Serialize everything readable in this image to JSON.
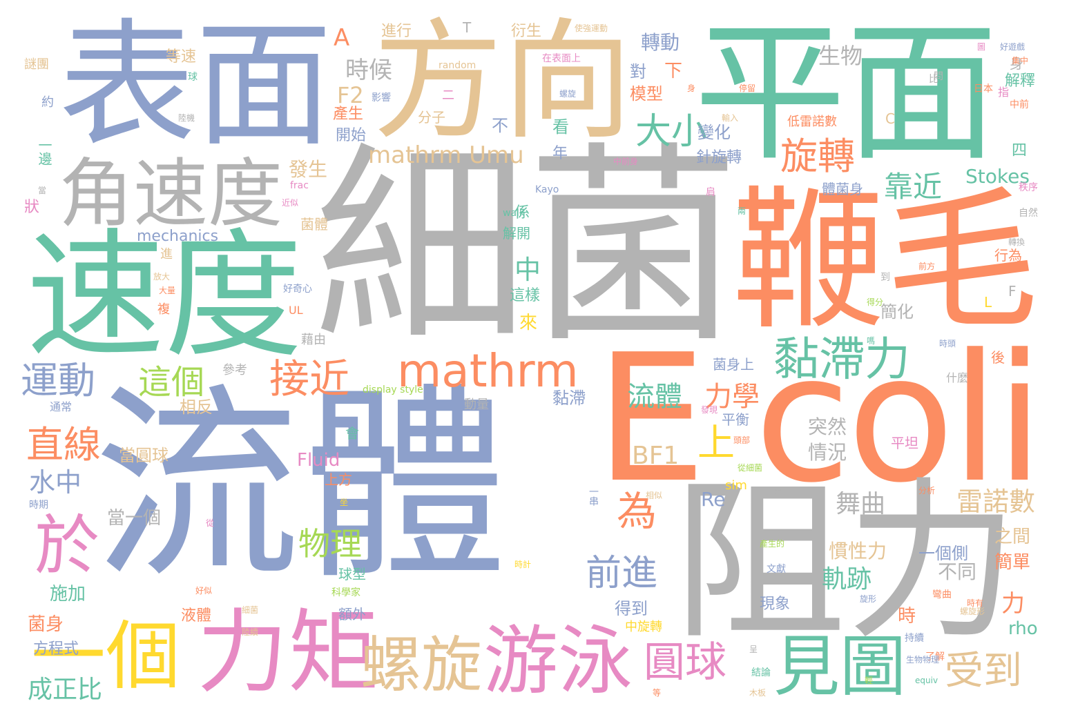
{
  "palette": {
    "teal": "#66c2a5",
    "orange": "#fc8d62",
    "blue": "#8da0cb",
    "pink": "#e78ac3",
    "green": "#a6d854",
    "yellow": "#ffd92f",
    "tan": "#e5c494",
    "gray": "#b3b3b3"
  },
  "words": [
    {
      "text": "細菌",
      "color": "gray"
    },
    {
      "text": "流體",
      "color": "blue"
    },
    {
      "text": "平面",
      "color": "teal"
    },
    {
      "text": "E coli",
      "color": "orange"
    },
    {
      "text": "鞭毛",
      "color": "orange"
    },
    {
      "text": "表面",
      "color": "blue"
    },
    {
      "text": "方向",
      "color": "tan"
    },
    {
      "text": "速度",
      "color": "teal"
    },
    {
      "text": "阻力",
      "color": "gray"
    },
    {
      "text": "角速度",
      "color": "gray"
    },
    {
      "text": "力矩",
      "color": "pink"
    },
    {
      "text": "游泳",
      "color": "pink"
    },
    {
      "text": "螺旋",
      "color": "tan"
    },
    {
      "text": "見圖",
      "color": "teal"
    },
    {
      "text": "一個",
      "color": "yellow"
    },
    {
      "text": "於",
      "color": "pink"
    },
    {
      "text": "mathrm",
      "color": "orange"
    },
    {
      "text": "黏滯力",
      "color": "teal"
    },
    {
      "text": "旋轉",
      "color": "orange"
    },
    {
      "text": "大小",
      "color": "teal"
    },
    {
      "text": "接近",
      "color": "orange"
    },
    {
      "text": "圓球",
      "color": "pink"
    },
    {
      "text": "受到",
      "color": "tan"
    },
    {
      "text": "運動",
      "color": "blue"
    },
    {
      "text": "直線",
      "color": "orange"
    },
    {
      "text": "這個",
      "color": "green"
    },
    {
      "text": "前進",
      "color": "blue"
    },
    {
      "text": "物理",
      "color": "green"
    },
    {
      "text": "靠近",
      "color": "teal"
    },
    {
      "text": "為",
      "color": "orange"
    },
    {
      "text": "上",
      "color": "yellow"
    },
    {
      "text": "時候",
      "color": "gray"
    },
    {
      "text": "mathrm Umu",
      "color": "tan"
    },
    {
      "text": "流體",
      "color": "teal"
    },
    {
      "text": "力學",
      "color": "orange"
    },
    {
      "text": "雷諾數",
      "color": "tan"
    },
    {
      "text": "軌跡",
      "color": "teal"
    },
    {
      "text": "舞曲",
      "color": "gray"
    },
    {
      "text": "BF1",
      "color": "tan"
    },
    {
      "text": "F2",
      "color": "tan"
    },
    {
      "text": "A",
      "color": "orange"
    },
    {
      "text": "轉動",
      "color": "blue"
    },
    {
      "text": "水中",
      "color": "blue"
    },
    {
      "text": "成正比",
      "color": "teal"
    },
    {
      "text": "生物",
      "color": "gray"
    },
    {
      "text": "Stokes",
      "color": "teal"
    },
    {
      "text": "中",
      "color": "teal"
    },
    {
      "text": "mechanics",
      "color": "blue"
    },
    {
      "text": "Fluid",
      "color": "pink"
    },
    {
      "text": "Re",
      "color": "blue"
    },
    {
      "text": "發生",
      "color": "tan"
    },
    {
      "text": "突然",
      "color": "gray"
    },
    {
      "text": "情況",
      "color": "gray"
    },
    {
      "text": "慣性力",
      "color": "tan"
    },
    {
      "text": "不同",
      "color": "gray"
    },
    {
      "text": "之間",
      "color": "tan"
    },
    {
      "text": "簡單",
      "color": "orange"
    },
    {
      "text": "一個側",
      "color": "blue"
    },
    {
      "text": "力",
      "color": "orange"
    },
    {
      "text": "rho",
      "color": "teal"
    },
    {
      "text": "菌身",
      "color": "orange"
    },
    {
      "text": "方程式",
      "color": "blue"
    },
    {
      "text": "施加",
      "color": "teal"
    },
    {
      "text": "當圓球",
      "color": "tan"
    },
    {
      "text": "當一個",
      "color": "gray"
    },
    {
      "text": "進行",
      "color": "tan"
    },
    {
      "text": "衍生",
      "color": "tan"
    },
    {
      "text": "等速",
      "color": "tan"
    },
    {
      "text": "模型",
      "color": "orange"
    },
    {
      "text": "解釋",
      "color": "teal"
    },
    {
      "text": "產生",
      "color": "orange"
    },
    {
      "text": "開始",
      "color": "blue"
    },
    {
      "text": "變化",
      "color": "blue"
    },
    {
      "text": "針旋轉",
      "color": "blue"
    },
    {
      "text": "體菌身",
      "color": "blue"
    },
    {
      "text": "簡化",
      "color": "gray"
    },
    {
      "text": "黏滯",
      "color": "blue"
    },
    {
      "text": "平衡",
      "color": "blue"
    },
    {
      "text": "得到",
      "color": "blue"
    },
    {
      "text": "現象",
      "color": "blue"
    },
    {
      "text": "球型",
      "color": "teal"
    },
    {
      "text": "額外",
      "color": "blue"
    },
    {
      "text": "液體",
      "color": "orange"
    },
    {
      "text": "上方",
      "color": "orange"
    },
    {
      "text": "相反",
      "color": "tan"
    },
    {
      "text": "係",
      "color": "teal"
    },
    {
      "text": "解開",
      "color": "teal"
    },
    {
      "text": "看",
      "color": "teal"
    },
    {
      "text": "年",
      "color": "blue"
    },
    {
      "text": "四",
      "color": "teal"
    },
    {
      "text": "後",
      "color": "orange"
    },
    {
      "text": "什麼",
      "color": "gray"
    },
    {
      "text": "時",
      "color": "orange"
    },
    {
      "text": "平坦",
      "color": "pink"
    },
    {
      "text": "不",
      "color": "blue"
    },
    {
      "text": "菌身上",
      "color": "blue"
    },
    {
      "text": "一邊",
      "color": "teal"
    },
    {
      "text": "狀",
      "color": "pink"
    },
    {
      "text": "來",
      "color": "yellow"
    },
    {
      "text": "這樣",
      "color": "teal"
    },
    {
      "text": "對",
      "color": "blue"
    },
    {
      "text": "下",
      "color": "orange"
    },
    {
      "text": "菌體",
      "color": "tan"
    },
    {
      "text": "身",
      "color": "gray"
    },
    {
      "text": "行為",
      "color": "orange"
    },
    {
      "text": "L",
      "color": "yellow"
    },
    {
      "text": "F",
      "color": "gray"
    },
    {
      "text": "C",
      "color": "tan"
    },
    {
      "text": "T",
      "color": "gray"
    },
    {
      "text": "參考",
      "color": "gray"
    },
    {
      "text": "藉由",
      "color": "gray"
    },
    {
      "text": "動量",
      "color": "gray"
    },
    {
      "text": "會",
      "color": "teal"
    },
    {
      "text": "複",
      "color": "orange"
    },
    {
      "text": "進",
      "color": "tan"
    },
    {
      "text": "分子",
      "color": "tan"
    },
    {
      "text": "二",
      "color": "pink"
    },
    {
      "text": "通常",
      "color": "blue"
    },
    {
      "text": "約",
      "color": "blue"
    },
    {
      "text": "謎團",
      "color": "tan"
    },
    {
      "text": "低雷諾數",
      "color": "orange"
    },
    {
      "text": "中旋轉",
      "color": "yellow"
    },
    {
      "text": "sim",
      "color": "yellow"
    },
    {
      "text": "文獻",
      "color": "blue"
    },
    {
      "text": "中前",
      "color": "orange"
    },
    {
      "text": "日本",
      "color": "orange"
    },
    {
      "text": "random",
      "color": "tan"
    },
    {
      "text": "Kayo",
      "color": "blue"
    },
    {
      "text": "walk",
      "color": "teal"
    },
    {
      "text": "frac",
      "color": "pink"
    },
    {
      "text": "UL",
      "color": "orange"
    },
    {
      "text": "display style",
      "color": "green"
    },
    {
      "text": "好奇心",
      "color": "blue"
    },
    {
      "text": "分析",
      "color": "orange"
    },
    {
      "text": "指",
      "color": "pink"
    },
    {
      "text": "equiv",
      "color": "teal"
    },
    {
      "text": "一再",
      "color": "gray"
    },
    {
      "text": "一串",
      "color": "blue"
    },
    {
      "text": "持續",
      "color": "blue"
    },
    {
      "text": "結論",
      "color": "teal"
    },
    {
      "text": "了解",
      "color": "orange"
    },
    {
      "text": "木板",
      "color": "tan"
    },
    {
      "text": "彎曲",
      "color": "orange"
    },
    {
      "text": "科學家",
      "color": "green"
    },
    {
      "text": "時期",
      "color": "blue"
    },
    {
      "text": "旋形",
      "color": "blue"
    },
    {
      "text": "生物物理",
      "color": "blue"
    },
    {
      "text": "球",
      "color": "teal"
    },
    {
      "text": "比",
      "color": "gray"
    },
    {
      "text": "影響",
      "color": "blue"
    },
    {
      "text": "陸續",
      "color": "tan"
    },
    {
      "text": "自然",
      "color": "gray"
    },
    {
      "text": "轉換",
      "color": "gray"
    },
    {
      "text": "秩序",
      "color": "pink"
    },
    {
      "text": "到",
      "color": "gray"
    },
    {
      "text": "前方",
      "color": "orange"
    },
    {
      "text": "得分",
      "color": "green"
    },
    {
      "text": "放大",
      "color": "tan"
    },
    {
      "text": "使強運動",
      "color": "tan"
    },
    {
      "text": "在表面上",
      "color": "pink"
    },
    {
      "text": "好遊戲",
      "color": "blue"
    },
    {
      "text": "時頭",
      "color": "blue"
    },
    {
      "text": "停留",
      "color": "orange"
    },
    {
      "text": "問",
      "color": "gray"
    },
    {
      "text": "時有",
      "color": "orange"
    },
    {
      "text": "時計",
      "color": "yellow"
    },
    {
      "text": "相似",
      "color": "tan"
    },
    {
      "text": "發現",
      "color": "pink"
    },
    {
      "text": "螺旋形",
      "color": "tan"
    },
    {
      "text": "產生的",
      "color": "green"
    },
    {
      "text": "從細菌",
      "color": "green"
    },
    {
      "text": "頭部",
      "color": "orange"
    },
    {
      "text": "肩",
      "color": "pink"
    },
    {
      "text": "從",
      "color": "pink"
    },
    {
      "text": "坐",
      "color": "yellow"
    },
    {
      "text": "等",
      "color": "orange"
    },
    {
      "text": "中前身",
      "color": "pink"
    },
    {
      "text": "輸入",
      "color": "tan"
    },
    {
      "text": "呈",
      "color": "gray"
    },
    {
      "text": "嗎",
      "color": "teal"
    },
    {
      "text": "好似",
      "color": "orange"
    },
    {
      "text": "細菌",
      "color": "tan"
    },
    {
      "text": "陸機",
      "color": "gray"
    },
    {
      "text": "螺旋",
      "color": "blue"
    },
    {
      "text": "集中",
      "color": "orange"
    },
    {
      "text": "當",
      "color": "gray"
    },
    {
      "text": "近似",
      "color": "pink"
    },
    {
      "text": "大量",
      "color": "orange"
    },
    {
      "text": "兩",
      "color": "teal"
    },
    {
      "text": "身",
      "color": "orange"
    },
    {
      "text": "輕",
      "color": "green"
    },
    {
      "text": "圖",
      "color": "pink"
    }
  ]
}
